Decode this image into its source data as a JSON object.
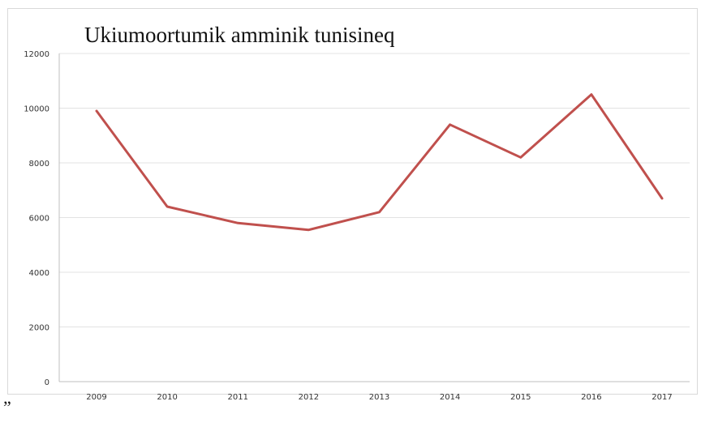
{
  "chart_data": {
    "type": "line",
    "title": "Ukiumoortumik amminik tunisineq",
    "xlabel": "",
    "ylabel": "",
    "categories": [
      "2009",
      "2010",
      "2011",
      "2012",
      "2013",
      "2014",
      "2015",
      "2016",
      "2017"
    ],
    "series": [
      {
        "values": [
          9900,
          6400,
          5800,
          5550,
          6200,
          9400,
          8200,
          10500,
          6700
        ],
        "color": "#c0504d"
      }
    ],
    "ylim": [
      0,
      12000
    ],
    "yticks": [
      "0",
      "2000",
      "4000",
      "6000",
      "8000",
      "10000",
      "12000"
    ],
    "grid": true,
    "legend": "none"
  },
  "footnote": "”"
}
